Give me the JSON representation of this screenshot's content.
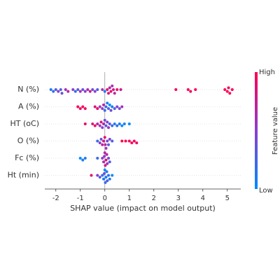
{
  "chart_data": {
    "type": "beeswarm",
    "x_label": "SHAP value (impact on model output)",
    "xlim": [
      -2.45,
      5.55
    ],
    "xticks": [
      -2,
      -1,
      0,
      1,
      2,
      3,
      4,
      5
    ],
    "cmap": [
      "#008bfb",
      "#8a3ed0",
      "#ff0052"
    ],
    "colorbar": {
      "title": "Feature value",
      "high": "High",
      "low": "Low"
    },
    "series": [
      {
        "name": "N (%)",
        "values": [
          -2.2,
          -2.1,
          -2.0,
          -1.9,
          -1.8,
          -1.75,
          -1.6,
          -1.5,
          -1.3,
          -1.2,
          -1.1,
          -1.0,
          -0.9,
          -0.8,
          -0.7,
          -0.6,
          -0.5,
          -0.4,
          -0.3,
          -0.1,
          0.0,
          0.1,
          0.15,
          0.2,
          0.25,
          0.3,
          0.35,
          0.4,
          0.5,
          0.65,
          2.9,
          3.4,
          3.5,
          3.7,
          4.9,
          5.0,
          5.05,
          5.1,
          5.2
        ],
        "feature_values": [
          0.1,
          0.2,
          0.3,
          0.5,
          0.3,
          0.4,
          0.6,
          0.7,
          0.5,
          0.2,
          0.3,
          0.6,
          0.4,
          0.5,
          0.6,
          0.8,
          0.4,
          0.5,
          0.3,
          0.6,
          0.1,
          0.9,
          0.8,
          0.7,
          0.9,
          0.6,
          0.8,
          0.7,
          0.9,
          0.8,
          1,
          1,
          0.95,
          1,
          1,
          1,
          0.95,
          1,
          1
        ]
      },
      {
        "name": "A (%)",
        "values": [
          -1.1,
          -1.0,
          -0.9,
          -0.8,
          -0.4,
          -0.3,
          -0.2,
          -0.1,
          0.0,
          0.1,
          0.15,
          0.2,
          0.25,
          0.3,
          0.4,
          0.5,
          0.6,
          0.7,
          -0.05,
          0.05
        ],
        "feature_values": [
          1,
          0.9,
          1,
          0.95,
          0.8,
          0.9,
          0.6,
          0.5,
          0.2,
          0.1,
          0.3,
          0.0,
          0.4,
          0.1,
          0.3,
          0.5,
          0.4,
          0.6,
          0.7,
          0.2
        ]
      },
      {
        "name": "HT (oC)",
        "values": [
          -0.8,
          -0.5,
          -0.4,
          -0.3,
          -0.2,
          -0.15,
          -0.1,
          0.0,
          0.05,
          0.1,
          0.2,
          0.3,
          0.4,
          0.5,
          0.6,
          0.7,
          0.8,
          1.0,
          -0.05,
          0.15
        ],
        "feature_values": [
          0.9,
          0.8,
          0.9,
          0.7,
          0.6,
          0.8,
          0.5,
          0.4,
          0.3,
          0.5,
          0.3,
          0.2,
          0.1,
          0.2,
          0.1,
          0.0,
          0.1,
          0.0,
          0.7,
          0.6
        ]
      },
      {
        "name": "O (%)",
        "values": [
          -0.3,
          -0.2,
          -0.1,
          -0.05,
          0.0,
          0.05,
          0.1,
          0.15,
          0.2,
          0.3,
          0.7,
          0.85,
          1.0,
          1.1,
          1.2,
          1.3,
          -0.15,
          0.02
        ],
        "feature_values": [
          0.2,
          0.5,
          0.7,
          0.8,
          0.9,
          0.6,
          0.4,
          0.3,
          0.5,
          0.3,
          1,
          1,
          0.95,
          1,
          1,
          0.9,
          0.4,
          0.7
        ]
      },
      {
        "name": "Fc (%)",
        "values": [
          -1.0,
          -0.9,
          -0.8,
          -0.3,
          -0.1,
          -0.05,
          0.0,
          0.02,
          0.05,
          0.1,
          0.15,
          0.2,
          -0.02,
          0.08
        ],
        "feature_values": [
          0.0,
          0.1,
          0.1,
          0.2,
          0.5,
          0.6,
          0.7,
          0.8,
          0.9,
          0.6,
          0.4,
          0.3,
          0.5,
          0.7
        ]
      },
      {
        "name": "Ht (min)",
        "values": [
          -0.55,
          -0.3,
          -0.2,
          -0.1,
          -0.05,
          0.0,
          0.02,
          0.05,
          0.1,
          0.15,
          0.2,
          0.3,
          -0.02,
          0.08
        ],
        "feature_values": [
          0.9,
          0.5,
          0.3,
          0.2,
          0.1,
          0.0,
          0.2,
          0.1,
          0.3,
          0.2,
          0.1,
          0.0,
          0.4,
          0.1
        ]
      }
    ]
  }
}
